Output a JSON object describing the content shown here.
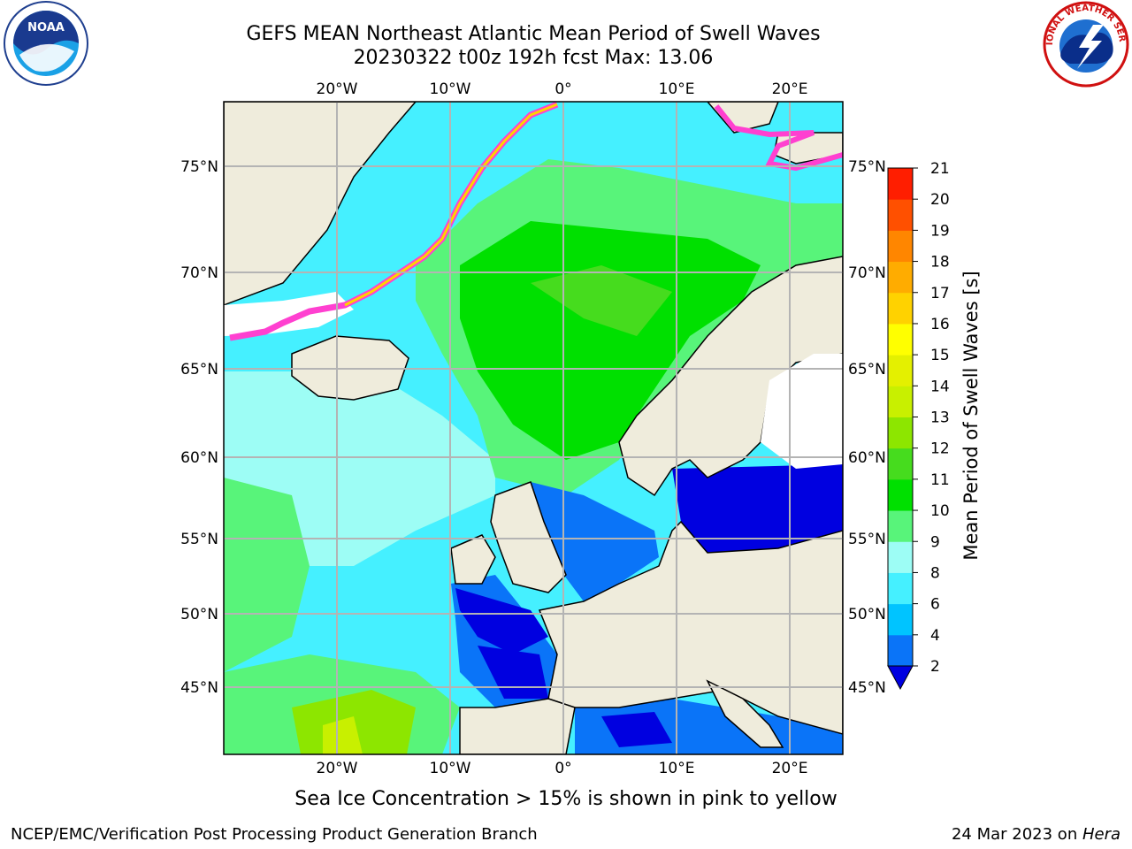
{
  "header": {
    "title_line1": "GEFS MEAN Northeast Atlantic Mean Period of Swell Waves",
    "title_line2": "20230322 t00z 192h fcst   Max: 13.06"
  },
  "logos": {
    "left": {
      "name": "noaa-logo",
      "text": "NOAA"
    },
    "right": {
      "name": "nws-logo",
      "text": "NATIONAL WEATHER SERVICE"
    }
  },
  "map": {
    "lon_ticks": [
      "20°W",
      "10°W",
      "0°",
      "10°E",
      "20°E"
    ],
    "lat_ticks": [
      "75°N",
      "70°N",
      "65°N",
      "60°N",
      "55°N",
      "50°N",
      "45°N"
    ],
    "land_color": "#efecdc",
    "grid_color": "#b4b4b4"
  },
  "colorbar": {
    "label": "Mean Period of Swell Waves [s]",
    "tick_labels": [
      "2",
      "4",
      "6",
      "8",
      "9",
      "10",
      "11",
      "12",
      "13",
      "14",
      "15",
      "16",
      "17",
      "18",
      "19",
      "20",
      "21"
    ],
    "colors": [
      "#0a74f8",
      "#00c4ff",
      "#45f0ff",
      "#9dfdf5",
      "#58f47a",
      "#00e000",
      "#46dc1e",
      "#8de600",
      "#c8f000",
      "#e4f000",
      "#ffff00",
      "#ffd200",
      "#ffac00",
      "#ff8600",
      "#ff5000",
      "#ff1e00"
    ],
    "under_color": "#0000e0"
  },
  "footer": {
    "note": "Sea Ice Concentration > 15% is shown in pink to yellow",
    "left": "NCEP/EMC/Verification Post Processing Product Generation Branch",
    "date": "24 Mar 2023 on ",
    "machine": "Hera"
  }
}
